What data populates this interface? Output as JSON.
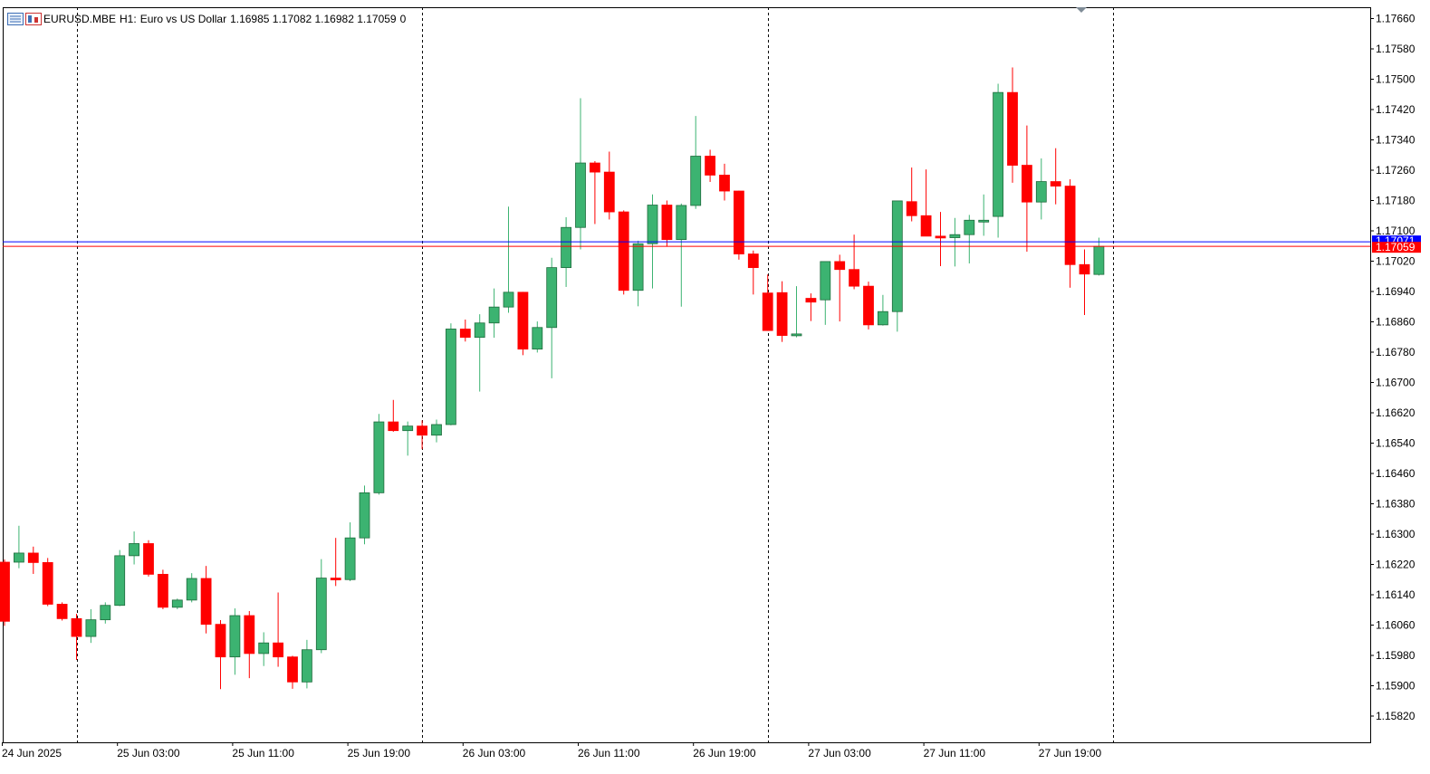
{
  "header": {
    "symbol": "EURUSD.MBE",
    "timeframe": "H1:",
    "description": "Euro vs US Dollar",
    "ohlc": "1.16985 1.17082 1.16982 1.17059",
    "extra": "0"
  },
  "colors": {
    "bull": "#3cb371",
    "bear": "#ff0000",
    "bid_line": "#ff0000",
    "ask_line": "#0000ff",
    "grid": "#000000",
    "background": "#ffffff"
  },
  "chart_data": {
    "type": "candlestick",
    "symbol": "EURUSD.MBE",
    "timeframe": "H1",
    "ylim": [
      1.1578,
      1.1769
    ],
    "y_ticks": [
      "1.17660",
      "1.17580",
      "1.17500",
      "1.17420",
      "1.17340",
      "1.17260",
      "1.17180",
      "1.17100",
      "1.17020",
      "1.16940",
      "1.16860",
      "1.16780",
      "1.16700",
      "1.16620",
      "1.16540",
      "1.16460",
      "1.16380",
      "1.16300",
      "1.16220",
      "1.16140",
      "1.16060",
      "1.15980",
      "1.15900",
      "1.15820"
    ],
    "x_labels": [
      {
        "index": 0,
        "label": "24 Jun 2025"
      },
      {
        "index": 8,
        "label": "25 Jun 03:00"
      },
      {
        "index": 16,
        "label": "25 Jun 11:00"
      },
      {
        "index": 24,
        "label": "25 Jun 19:00"
      },
      {
        "index": 32,
        "label": "26 Jun 03:00"
      },
      {
        "index": 40,
        "label": "26 Jun 11:00"
      },
      {
        "index": 48,
        "label": "26 Jun 19:00"
      },
      {
        "index": 56,
        "label": "27 Jun 03:00"
      },
      {
        "index": 64,
        "label": "27 Jun 11:00"
      },
      {
        "index": 72,
        "label": "27 Jun 19:00"
      }
    ],
    "day_separators": [
      5,
      29,
      53,
      77
    ],
    "bid_price": 1.17059,
    "bid_label": "1.17059",
    "ask_price": 1.17071,
    "ask_label": "1.17071",
    "candles": [
      [
        1.16226,
        1.16233,
        1.16058,
        1.1607
      ],
      [
        1.16226,
        1.16322,
        1.1621,
        1.1625
      ],
      [
        1.1625,
        1.16267,
        1.16195,
        1.16225
      ],
      [
        1.16225,
        1.16237,
        1.1611,
        1.16115
      ],
      [
        1.16115,
        1.1612,
        1.16072,
        1.16077
      ],
      [
        1.16077,
        1.1609,
        1.15968,
        1.1603
      ],
      [
        1.1603,
        1.16102,
        1.16013,
        1.16074
      ],
      [
        1.16074,
        1.1612,
        1.16064,
        1.16112
      ],
      [
        1.16112,
        1.16258,
        1.1611,
        1.16243
      ],
      [
        1.16243,
        1.16307,
        1.1622,
        1.16275
      ],
      [
        1.16275,
        1.16284,
        1.16188,
        1.16194
      ],
      [
        1.16194,
        1.16206,
        1.16102,
        1.16107
      ],
      [
        1.16107,
        1.1613,
        1.16102,
        1.16126
      ],
      [
        1.16126,
        1.16197,
        1.1612,
        1.16183
      ],
      [
        1.16183,
        1.16216,
        1.16038,
        1.16062
      ],
      [
        1.16062,
        1.16073,
        1.15891,
        1.15976
      ],
      [
        1.15976,
        1.16104,
        1.15929,
        1.16085
      ],
      [
        1.16085,
        1.16097,
        1.1592,
        1.15985
      ],
      [
        1.15985,
        1.16041,
        1.15952,
        1.16013
      ],
      [
        1.16013,
        1.16146,
        1.1595,
        1.15976
      ],
      [
        1.15976,
        1.15979,
        1.15892,
        1.1591
      ],
      [
        1.1591,
        1.16021,
        1.15893,
        1.15995
      ],
      [
        1.15995,
        1.16234,
        1.15986,
        1.16184
      ],
      [
        1.16184,
        1.1629,
        1.16163,
        1.1618
      ],
      [
        1.1618,
        1.16331,
        1.16176,
        1.1629
      ],
      [
        1.1629,
        1.16428,
        1.16273,
        1.16409
      ],
      [
        1.16409,
        1.16617,
        1.16404,
        1.16596
      ],
      [
        1.16596,
        1.16654,
        1.1657,
        1.16573
      ],
      [
        1.16573,
        1.16597,
        1.16507,
        1.16585
      ],
      [
        1.16585,
        1.166,
        1.16524,
        1.16561
      ],
      [
        1.16561,
        1.16602,
        1.16542,
        1.16589
      ],
      [
        1.16589,
        1.16856,
        1.16587,
        1.16841
      ],
      [
        1.16841,
        1.16866,
        1.16808,
        1.16819
      ],
      [
        1.16819,
        1.1688,
        1.16676,
        1.16857
      ],
      [
        1.16857,
        1.16948,
        1.16818,
        1.16899
      ],
      [
        1.16899,
        1.17164,
        1.16884,
        1.16938
      ],
      [
        1.16938,
        1.16939,
        1.16772,
        1.16788
      ],
      [
        1.16788,
        1.16861,
        1.16779,
        1.16845
      ],
      [
        1.16845,
        1.17029,
        1.16711,
        1.17003
      ],
      [
        1.17003,
        1.17136,
        1.16952,
        1.17109
      ],
      [
        1.17109,
        1.1745,
        1.17051,
        1.17279
      ],
      [
        1.17279,
        1.17284,
        1.17118,
        1.17255
      ],
      [
        1.17255,
        1.17309,
        1.1713,
        1.1715
      ],
      [
        1.1715,
        1.17154,
        1.16932,
        1.16943
      ],
      [
        1.16943,
        1.17074,
        1.16901,
        1.17066
      ],
      [
        1.17066,
        1.17196,
        1.16948,
        1.17168
      ],
      [
        1.17168,
        1.1718,
        1.17058,
        1.17077
      ],
      [
        1.17077,
        1.17172,
        1.169,
        1.17167
      ],
      [
        1.17167,
        1.17403,
        1.17158,
        1.17297
      ],
      [
        1.17297,
        1.17314,
        1.17229,
        1.17247
      ],
      [
        1.17247,
        1.17277,
        1.1718,
        1.17205
      ],
      [
        1.17205,
        1.17206,
        1.17024,
        1.17039
      ],
      [
        1.17039,
        1.17048,
        1.16932,
        1.17003
      ],
      [
        1.16936,
        1.16985,
        1.16836,
        1.16837
      ],
      [
        1.16937,
        1.16967,
        1.16807,
        1.16824
      ],
      [
        1.16824,
        1.16954,
        1.16819,
        1.16828
      ],
      [
        1.16922,
        1.16935,
        1.16862,
        1.16912
      ],
      [
        1.16918,
        1.1701,
        1.16852,
        1.17019
      ],
      [
        1.17019,
        1.17037,
        1.16861,
        1.16998
      ],
      [
        1.16998,
        1.1709,
        1.16946,
        1.16954
      ],
      [
        1.16954,
        1.16966,
        1.1684,
        1.16852
      ],
      [
        1.16852,
        1.16931,
        1.1685,
        1.16887
      ],
      [
        1.16887,
        1.17179,
        1.16834,
        1.17179
      ],
      [
        1.17177,
        1.17267,
        1.17125,
        1.1714
      ],
      [
        1.1714,
        1.17262,
        1.17091,
        1.17086
      ],
      [
        1.17086,
        1.1715,
        1.17007,
        1.17082
      ],
      [
        1.17082,
        1.17134,
        1.17006,
        1.1709
      ],
      [
        1.1709,
        1.17142,
        1.17014,
        1.17128
      ],
      [
        1.17128,
        1.17196,
        1.17087,
        1.17128
      ],
      [
        1.17138,
        1.17488,
        1.17082,
        1.17465
      ],
      [
        1.17465,
        1.17531,
        1.17227,
        1.17273
      ],
      [
        1.17273,
        1.17378,
        1.17045,
        1.17176
      ],
      [
        1.17176,
        1.17291,
        1.1713,
        1.1723
      ],
      [
        1.1723,
        1.17318,
        1.1717,
        1.17218
      ],
      [
        1.17218,
        1.17236,
        1.1695,
        1.17011
      ],
      [
        1.17011,
        1.17051,
        1.16878,
        1.16986
      ],
      [
        1.16985,
        1.17082,
        1.16982,
        1.17059
      ]
    ]
  }
}
